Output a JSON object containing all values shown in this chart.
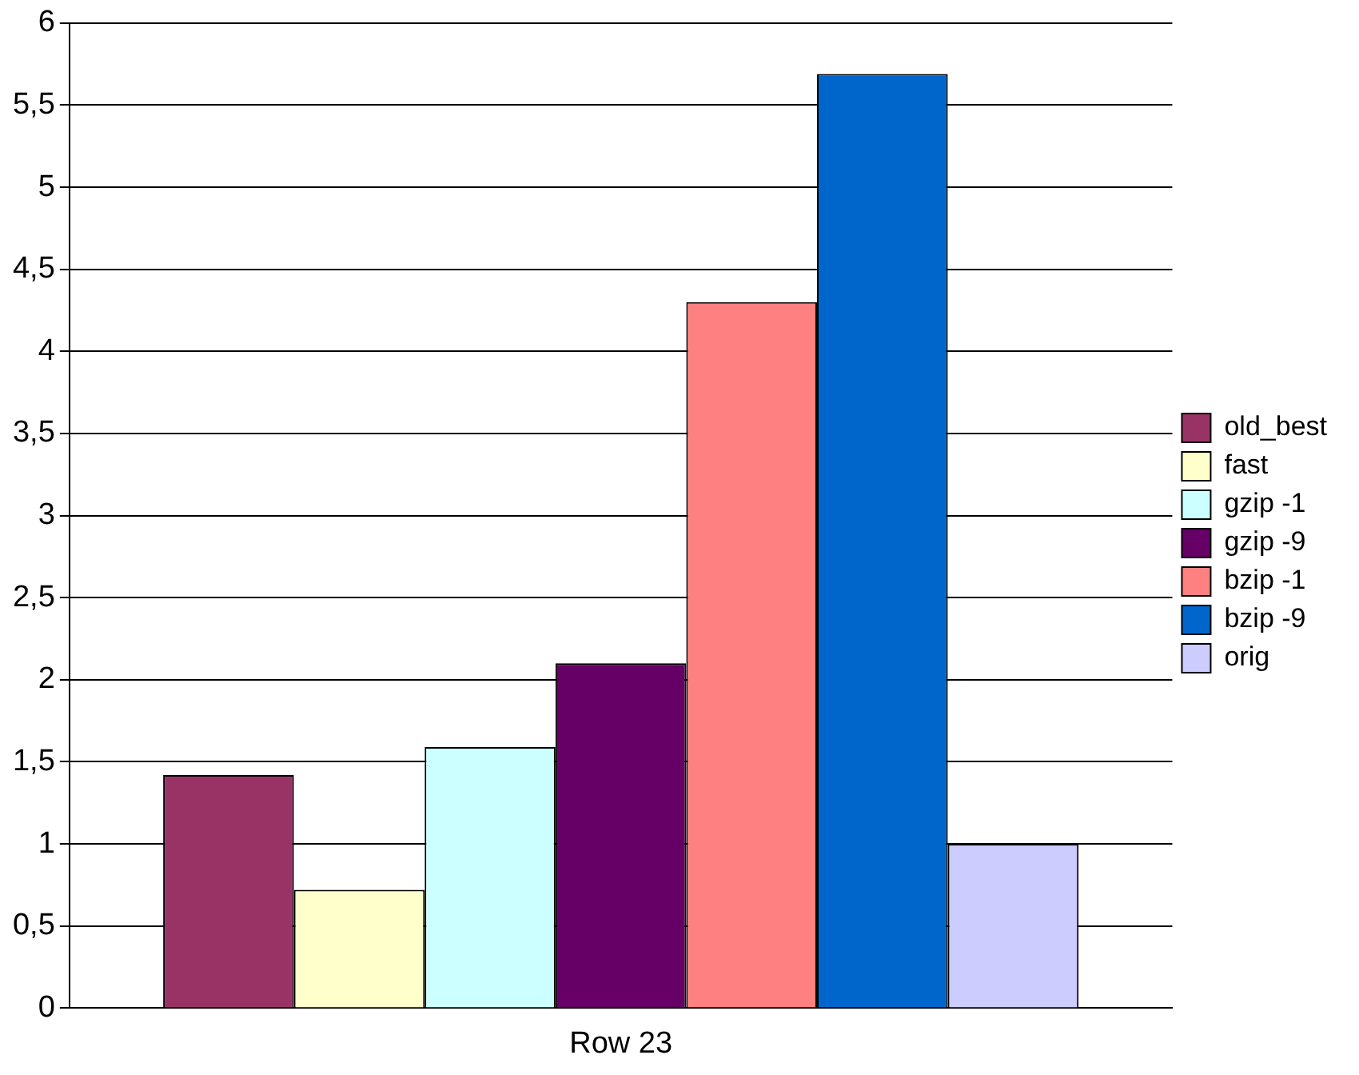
{
  "chart_data": {
    "type": "bar",
    "categories": [
      "Row 23"
    ],
    "series": [
      {
        "name": "old_best",
        "color": "#993366",
        "values": [
          1.42
        ]
      },
      {
        "name": "fast",
        "color": "#ffffcc",
        "values": [
          0.72
        ]
      },
      {
        "name": "gzip -1",
        "color": "#ccffff",
        "values": [
          1.59
        ]
      },
      {
        "name": "gzip -9",
        "color": "#660066",
        "values": [
          2.1
        ]
      },
      {
        "name": "bzip -1",
        "color": "#ff8080",
        "values": [
          4.3
        ]
      },
      {
        "name": "bzip -9",
        "color": "#0066cc",
        "values": [
          5.69
        ]
      },
      {
        "name": "orig",
        "color": "#ccccff",
        "values": [
          1.0
        ]
      }
    ],
    "ylim": [
      0,
      6
    ],
    "yticks": [
      0,
      {
        "value": 0.5,
        "label": "0,5"
      },
      1,
      {
        "value": 1.5,
        "label": "1,5"
      },
      2,
      {
        "value": 2.5,
        "label": "2,5"
      },
      3,
      {
        "value": 3.5,
        "label": "3,5"
      },
      4,
      {
        "value": 4.5,
        "label": "4,5"
      },
      5,
      {
        "value": 5.5,
        "label": "5,5"
      },
      6
    ],
    "grid": "y",
    "legend": "right"
  }
}
